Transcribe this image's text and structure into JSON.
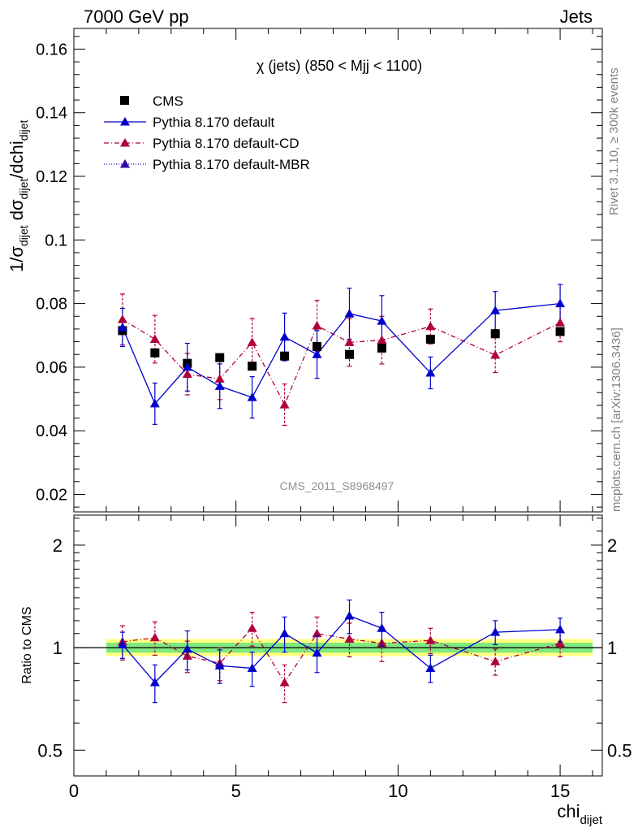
{
  "header": {
    "left": "7000 GeV pp",
    "right": "Jets"
  },
  "side_text": {
    "rivet": "Rivet 3.1.10, ≥ 300k events",
    "mcplots": "mcplots.cern.ch [arXiv:1306.3436]"
  },
  "colors": {
    "cms": "#000000",
    "default": "#0000cc",
    "default_cd": "#b0003a",
    "default_mbr": "#3300aa",
    "band_inner": "#7fe87f",
    "band_outer": "#ffff80"
  },
  "chart_data": [
    {
      "type": "scatter",
      "title": "χ (jets) (850 < Mjj < 1100)",
      "watermark": "CMS_2011_S8968497",
      "ylabel": "1/σdijet dσdijet/dchidijet",
      "ylabel_parts": {
        "a": "1/σ",
        "b": "dijet",
        "c": " dσ",
        "d": "dijet",
        "e": "/dchi",
        "f": "dijet"
      },
      "xlim": [
        0,
        16.3
      ],
      "ylim": [
        0.0145,
        0.1665
      ],
      "yticks": [
        0.02,
        0.04,
        0.06,
        0.08,
        0.1,
        0.12,
        0.14,
        0.16
      ],
      "yticklabels": [
        "0.02",
        "0.04",
        "0.06",
        "0.08",
        "0.1",
        "0.12",
        "0.14",
        "0.16"
      ],
      "legend_position": "top-left",
      "series": [
        {
          "name": "CMS",
          "marker": "square",
          "line": "none",
          "x": [
            1.5,
            2.5,
            3.5,
            4.5,
            5.5,
            6.5,
            7.5,
            8.5,
            9.5,
            11,
            13,
            15
          ],
          "y": [
            0.0715,
            0.0645,
            0.0612,
            0.063,
            0.0603,
            0.0635,
            0.0665,
            0.064,
            0.066,
            0.0688,
            0.0705,
            0.0712
          ]
        },
        {
          "name": "Pythia 8.170 default",
          "marker": "triangle",
          "line": "solid",
          "x": [
            1.5,
            2.5,
            3.5,
            4.5,
            5.5,
            6.5,
            7.5,
            8.5,
            9.5,
            11,
            13,
            15
          ],
          "y": [
            0.0725,
            0.0485,
            0.06,
            0.054,
            0.0505,
            0.0695,
            0.064,
            0.0768,
            0.0745,
            0.0582,
            0.0778,
            0.08
          ],
          "err": [
            0.006,
            0.0065,
            0.0075,
            0.007,
            0.0065,
            0.0075,
            0.0075,
            0.008,
            0.008,
            0.005,
            0.006,
            0.006
          ]
        },
        {
          "name": "Pythia 8.170 default-CD",
          "marker": "triangle",
          "line": "dashdot",
          "x": [
            1.5,
            2.5,
            3.5,
            4.5,
            5.5,
            6.5,
            7.5,
            8.5,
            9.5,
            11,
            13,
            15
          ],
          "y": [
            0.075,
            0.0688,
            0.0578,
            0.0563,
            0.0678,
            0.0482,
            0.073,
            0.0678,
            0.0685,
            0.0728,
            0.0638,
            0.074
          ],
          "err": [
            0.008,
            0.0075,
            0.0065,
            0.0065,
            0.0075,
            0.0065,
            0.008,
            0.0075,
            0.0075,
            0.0055,
            0.0055,
            0.006
          ]
        },
        {
          "name": "Pythia 8.170 default-MBR",
          "marker": "triangle",
          "line": "dotted",
          "x": [],
          "y": []
        }
      ]
    },
    {
      "type": "scatter",
      "title": "",
      "ylabel": "Ratio to CMS",
      "xlabel": "chidijet",
      "xlabel_parts": {
        "a": "chi",
        "b": "dijet"
      },
      "xlim": [
        0,
        16.3
      ],
      "ylim": [
        0.42,
        2.45
      ],
      "y_scale": "log",
      "xticks": [
        0,
        5,
        10,
        15
      ],
      "xticklabels": [
        "0",
        "5",
        "10",
        "15"
      ],
      "yticks": [
        0.5,
        1,
        2
      ],
      "yticklabels": [
        "0.5",
        "1",
        "2"
      ],
      "bands": {
        "x_range": [
          1,
          16
        ],
        "inner": [
          0.967,
          1.034
        ],
        "outer": [
          0.945,
          1.06
        ]
      },
      "series": [
        {
          "name": "Pythia 8.170 default",
          "x": [
            1.5,
            2.5,
            3.5,
            4.5,
            5.5,
            6.5,
            7.5,
            8.5,
            9.5,
            11,
            13,
            15
          ],
          "y": [
            1.02,
            0.79,
            0.99,
            0.885,
            0.87,
            1.1,
            0.965,
            1.24,
            1.14,
            0.87,
            1.11,
            1.13
          ],
          "err": [
            0.09,
            0.1,
            0.13,
            0.1,
            0.1,
            0.13,
            0.12,
            0.14,
            0.13,
            0.08,
            0.09,
            0.09
          ]
        },
        {
          "name": "Pythia 8.170 default-CD",
          "x": [
            1.5,
            2.5,
            3.5,
            4.5,
            5.5,
            6.5,
            7.5,
            8.5,
            9.5,
            11,
            13,
            15
          ],
          "y": [
            1.04,
            1.07,
            0.945,
            0.9,
            1.14,
            0.79,
            1.1,
            1.06,
            1.03,
            1.05,
            0.91,
            1.03
          ],
          "err": [
            0.12,
            0.12,
            0.1,
            0.1,
            0.13,
            0.1,
            0.13,
            0.12,
            0.12,
            0.09,
            0.08,
            0.09
          ]
        }
      ]
    }
  ]
}
